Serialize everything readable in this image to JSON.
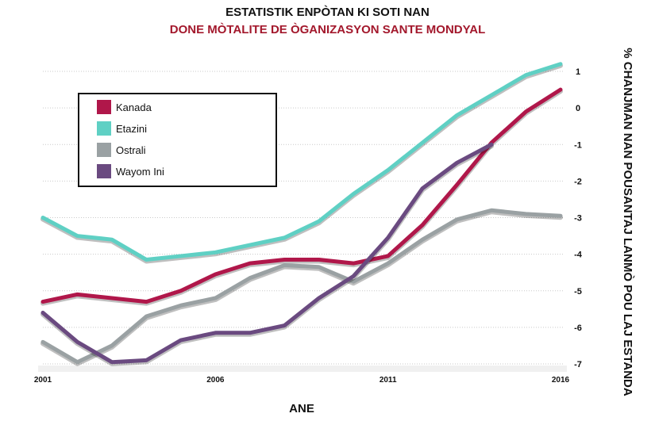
{
  "chart_data": {
    "type": "line",
    "title": "ESTATISTIK ENPÒTAN KI SOTI NAN",
    "subtitle": "DONE MÒTALITE DE ÒGANIZASYON SANTE MONDYAL",
    "xlabel": "ANE",
    "ylabel": "% CHANJMAN NAN POUSANTAJ LANMÒ POU LAJ ESTANDA",
    "x_ticks": [
      "2001",
      "2006",
      "2011",
      "2016"
    ],
    "y_ticks": [
      "1",
      "0",
      "-1",
      "-2",
      "-3",
      "-4",
      "-5",
      "-6",
      "-7"
    ],
    "xlim": [
      2001,
      2016
    ],
    "ylim": [
      -7,
      1
    ],
    "grid": true,
    "legend_position": "top-left",
    "series": [
      {
        "name": "Kanada",
        "color": "#b0174a",
        "x": [
          2001,
          2002,
          2003,
          2004,
          2005,
          2006,
          2007,
          2008,
          2009,
          2010,
          2011,
          2012,
          2013,
          2014,
          2015,
          2016
        ],
        "y": [
          -5.3,
          -5.1,
          -5.2,
          -5.3,
          -5.0,
          -4.55,
          -4.25,
          -4.15,
          -4.15,
          -4.25,
          -4.05,
          -3.2,
          -2.1,
          -0.95,
          -0.1,
          0.5
        ]
      },
      {
        "name": "Etazini",
        "color": "#5fd0c4",
        "x": [
          2001,
          2002,
          2003,
          2004,
          2005,
          2006,
          2007,
          2008,
          2009,
          2010,
          2011,
          2012,
          2013,
          2014,
          2015,
          2016
        ],
        "y": [
          -3.0,
          -3.5,
          -3.6,
          -4.15,
          -4.05,
          -3.95,
          -3.75,
          -3.55,
          -3.1,
          -2.35,
          -1.7,
          -0.95,
          -0.2,
          0.35,
          0.9,
          1.2
        ]
      },
      {
        "name": "Ostrali",
        "color": "#9aa1a3",
        "x": [
          2001,
          2002,
          2003,
          2004,
          2005,
          2006,
          2007,
          2008,
          2009,
          2010,
          2011,
          2012,
          2013,
          2014,
          2015,
          2016
        ],
        "y": [
          -6.4,
          -6.95,
          -6.5,
          -5.7,
          -5.4,
          -5.2,
          -4.65,
          -4.3,
          -4.35,
          -4.75,
          -4.25,
          -3.6,
          -3.05,
          -2.8,
          -2.9,
          -2.95
        ]
      },
      {
        "name": "Wayom Ini",
        "color": "#6a4a80",
        "x": [
          2001,
          2002,
          2003,
          2004,
          2005,
          2006,
          2007,
          2008,
          2009,
          2010,
          2011,
          2012,
          2013,
          2014
        ],
        "y": [
          -5.6,
          -6.4,
          -6.95,
          -6.9,
          -6.35,
          -6.15,
          -6.15,
          -5.95,
          -5.2,
          -4.6,
          -3.55,
          -2.2,
          -1.5,
          -1.0
        ]
      }
    ]
  }
}
